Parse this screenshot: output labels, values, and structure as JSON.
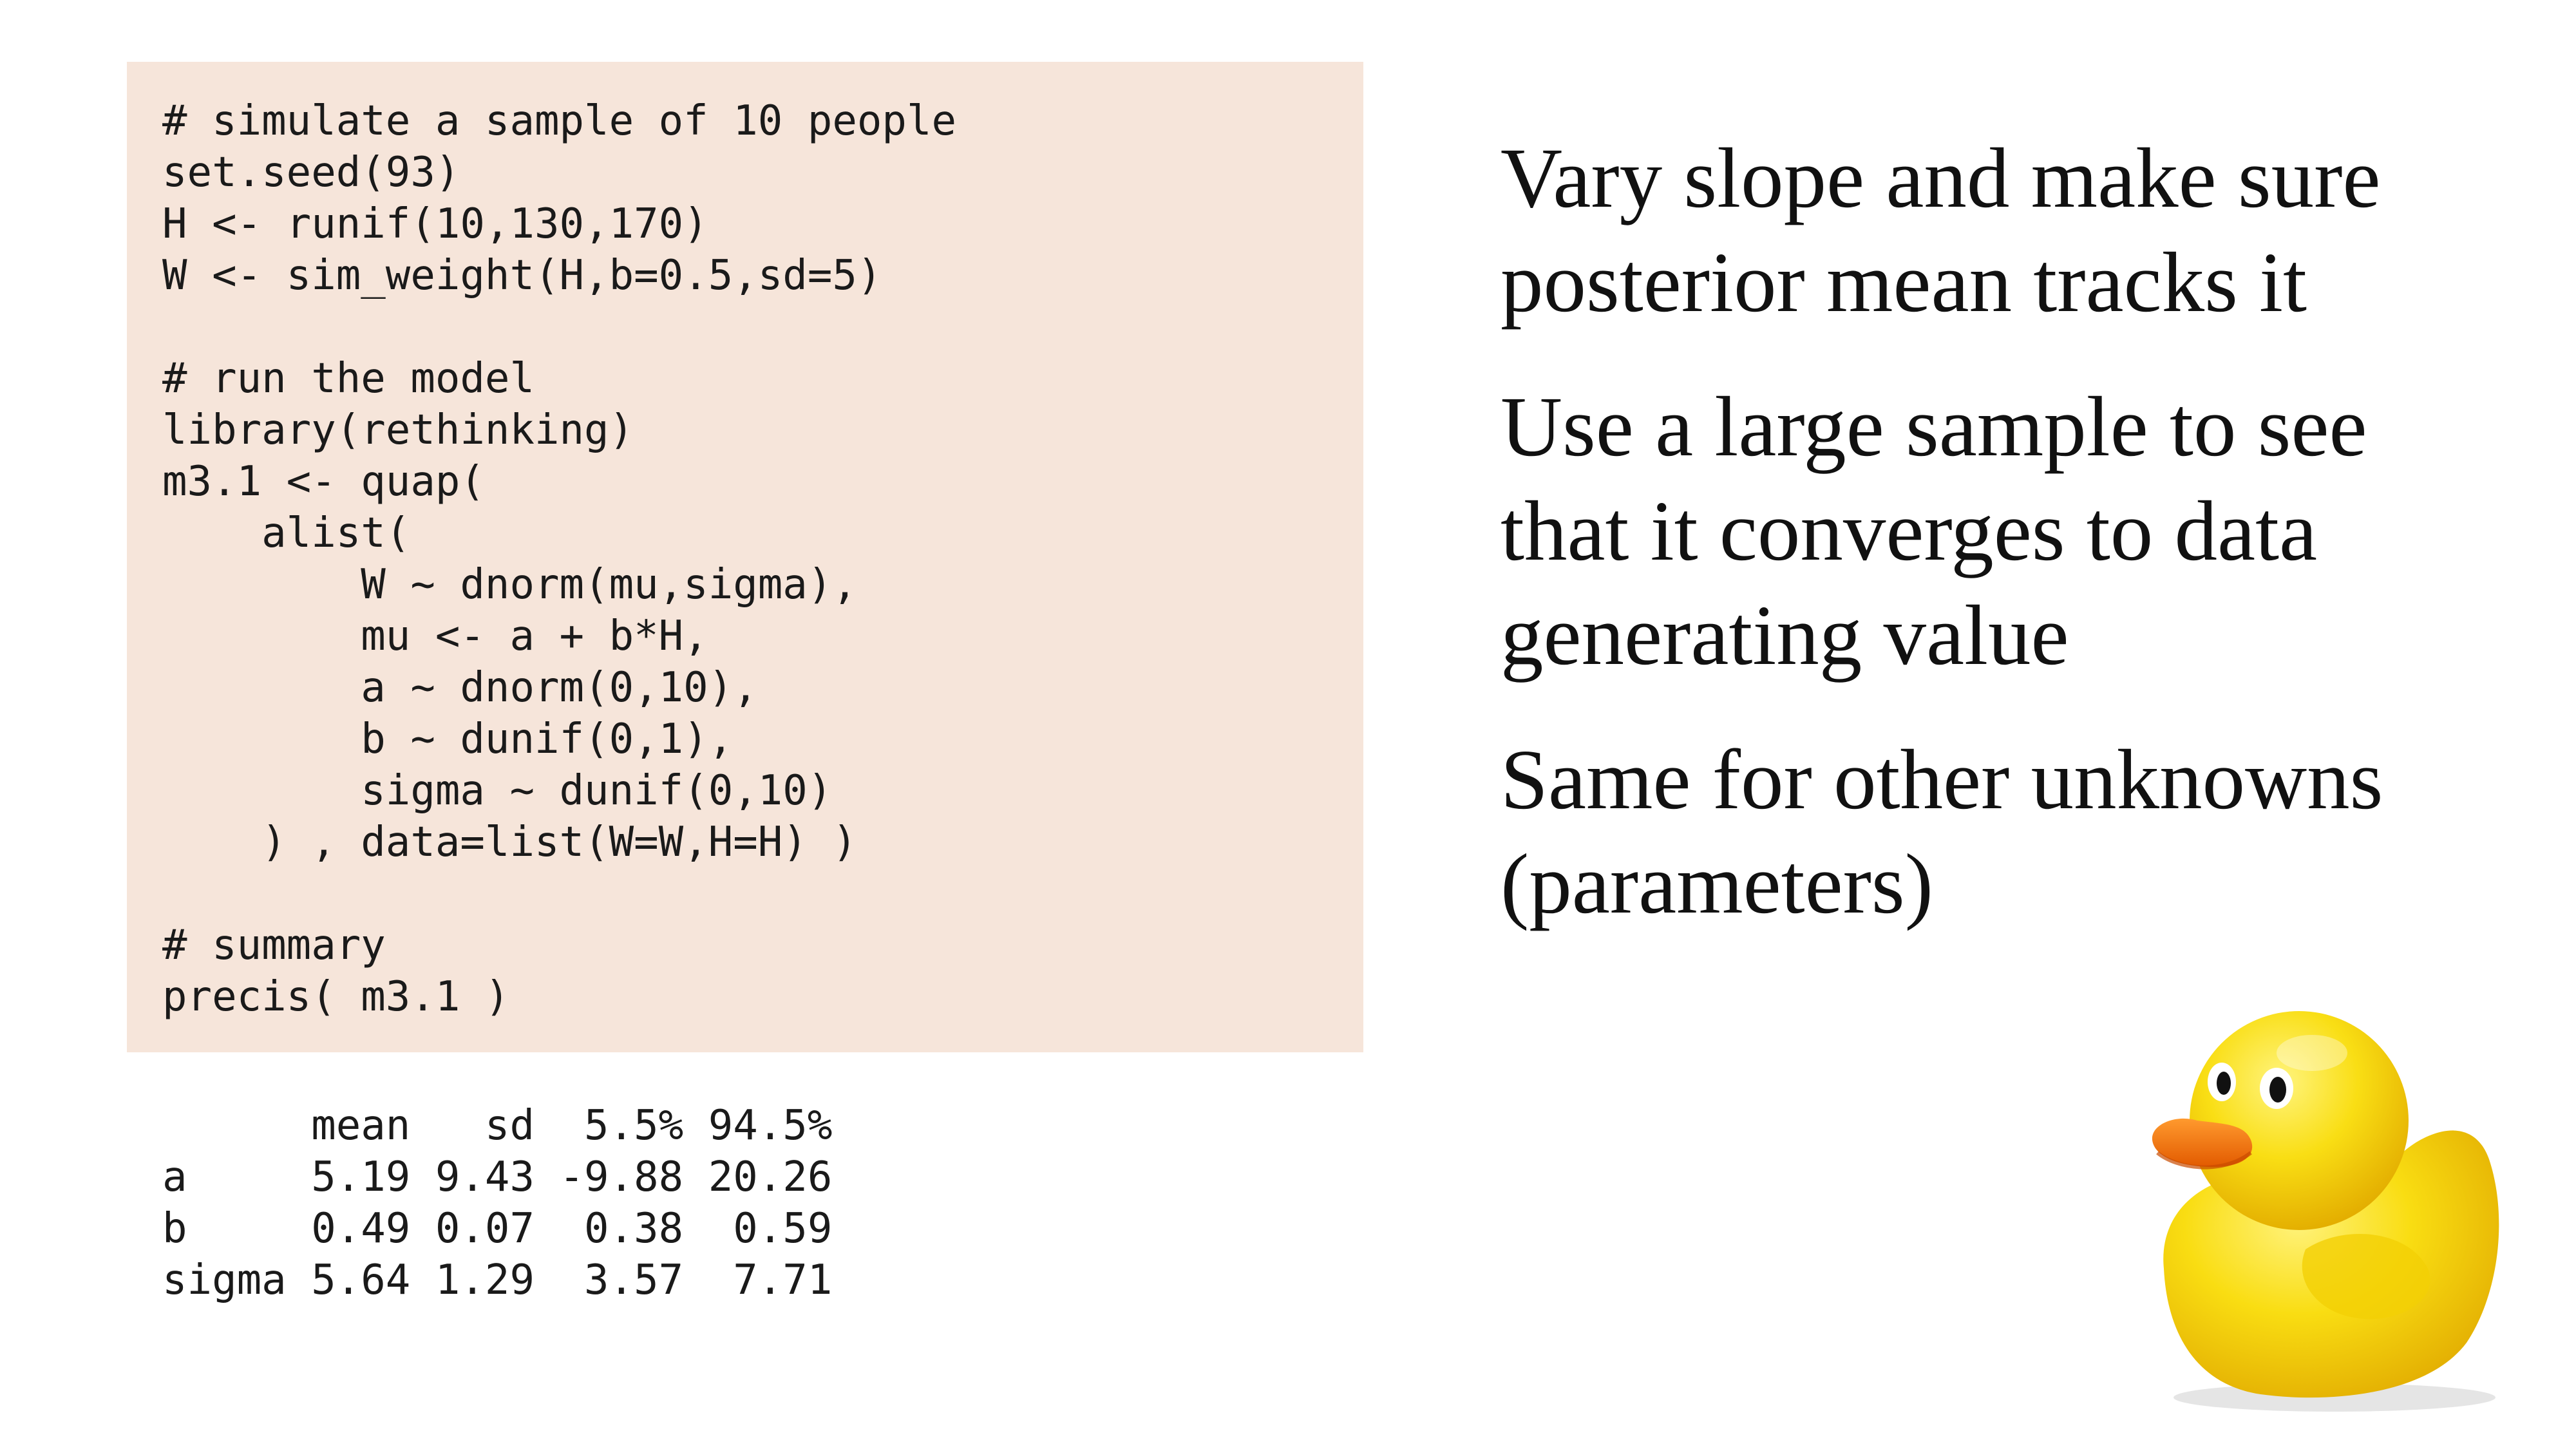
{
  "code": {
    "lines": [
      "# simulate a sample of 10 people",
      "set.seed(93)",
      "H <- runif(10,130,170)",
      "W <- sim_weight(H,b=0.5,sd=5)",
      "",
      "# run the model",
      "library(rethinking)",
      "m3.1 <- quap(",
      "    alist(",
      "        W ~ dnorm(mu,sigma),",
      "        mu <- a + b*H,",
      "        a ~ dnorm(0,10),",
      "        b ~ dunif(0,1),",
      "        sigma ~ dunif(0,10)",
      "    ) , data=list(W=W,H=H) )",
      "",
      "# summary",
      "precis( m3.1 )"
    ]
  },
  "output": {
    "header": "      mean   sd  5.5% 94.5%",
    "rows": [
      "a     5.19 9.43 -9.88 20.26",
      "b     0.49 0.07  0.38  0.59",
      "sigma 5.64 1.29  3.57  7.71"
    ]
  },
  "bullets": [
    {
      "lines": [
        "Vary slope and make sure",
        "posterior mean tracks it"
      ]
    },
    {
      "lines": [
        "Use a large sample to see",
        "that it converges to data",
        "generating value"
      ]
    },
    {
      "lines": [
        "Same for other unknowns",
        "(parameters)"
      ]
    }
  ],
  "image": {
    "icon": "rubber-duck-icon"
  },
  "colors": {
    "code_background": "#f6e5da",
    "duck_yellow": "#f7d90a",
    "duck_beak": "#f0700a"
  }
}
